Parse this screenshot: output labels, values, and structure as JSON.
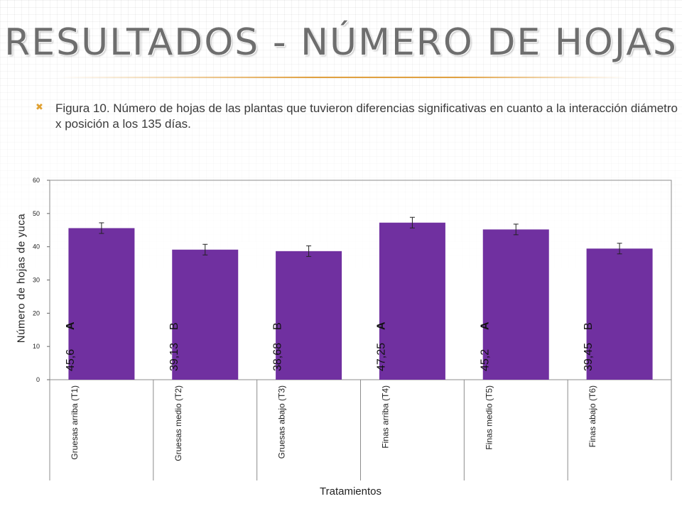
{
  "slide": {
    "title": "RESULTADOS  -  NÚMERO DE HOJAS",
    "caption": "Figura 10. Número de hojas de las plantas que tuvieron diferencias significativas en cuanto a la interacción diámetro x posición a los 135 días.",
    "bullet_icon": "x-bullet-icon",
    "accent_color": "#e0a040"
  },
  "chart_data": {
    "type": "bar",
    "categories": [
      "Gruesas arriba (T1)",
      "Gruesas medio (T2)",
      "Gruesas abajo (T3)",
      "Finas arriba (T4)",
      "Finas medio (T5)",
      "Finas abajo (T6)"
    ],
    "values": [
      45.6,
      39.13,
      38.68,
      47.25,
      45.2,
      39.45
    ],
    "value_labels": [
      "45,6",
      "39,13",
      "38,68",
      "47,25",
      "45,2",
      "39,45"
    ],
    "significance_letters": [
      "A",
      "B",
      "B",
      "A",
      "A",
      "B"
    ],
    "error_bars": [
      1.6,
      1.6,
      1.6,
      1.6,
      1.6,
      1.6
    ],
    "xlabel": "Tratamientos",
    "ylabel": "Número de hojas de yuca",
    "ylim": [
      0,
      60
    ],
    "yticks": [
      0,
      10,
      20,
      30,
      40,
      50,
      60
    ],
    "bar_color": "#7030a0",
    "grid": false,
    "legend": "none"
  }
}
